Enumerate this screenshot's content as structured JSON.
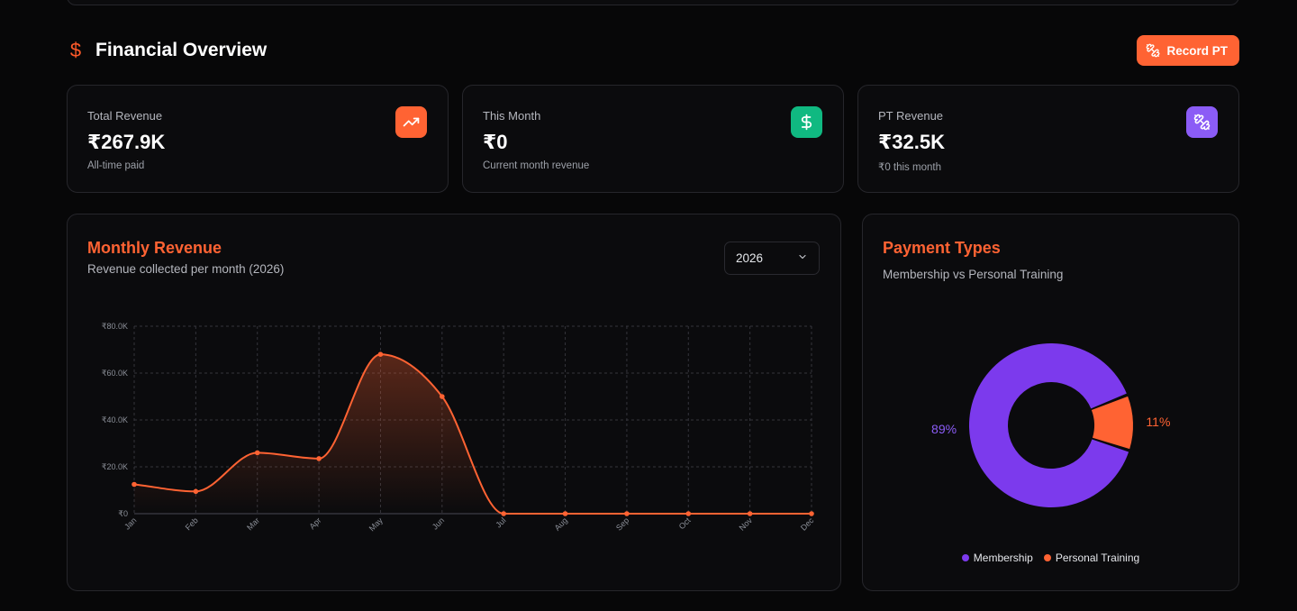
{
  "header": {
    "title": "Financial Overview",
    "title_icon": "dollar-sign-icon",
    "record_button_label": "Record PT",
    "record_button_icon": "dumbbell-icon"
  },
  "stats": [
    {
      "label": "Total Revenue",
      "value": "₹267.9K",
      "sub": "All-time paid",
      "icon": "trending-up-icon",
      "color": "#ff6333"
    },
    {
      "label": "This Month",
      "value": "₹0",
      "sub": "Current month revenue",
      "icon": "dollar-sign-icon",
      "color": "#10b981"
    },
    {
      "label": "PT Revenue",
      "value": "₹32.5K",
      "sub": "₹0 this month",
      "icon": "dumbbell-icon",
      "color": "#8b5cf6"
    }
  ],
  "monthly": {
    "title": "Monthly Revenue",
    "subtitle": "Revenue collected per month (2026)",
    "year_selected": "2026"
  },
  "payment": {
    "title": "Payment Types",
    "subtitle": "Membership vs Personal Training"
  },
  "colors": {
    "accent": "#ff6333",
    "membership": "#7c3aed",
    "personal_training": "#ff6333"
  },
  "chart_data": [
    {
      "type": "area",
      "x": [
        "Jan",
        "Feb",
        "Mar",
        "Apr",
        "May",
        "Jun",
        "Jul",
        "Aug",
        "Sep",
        "Oct",
        "Nov",
        "Dec"
      ],
      "series": [
        {
          "values": [
            12500,
            9500,
            26000,
            23500,
            68000,
            50000,
            0,
            0,
            0,
            0,
            0,
            0
          ]
        }
      ],
      "y_ticks": [
        "₹0",
        "₹20.0K",
        "₹40.0K",
        "₹60.0K",
        "₹80.0K"
      ],
      "ylim": [
        0,
        80000
      ],
      "grid": true,
      "curve": "smooth"
    },
    {
      "type": "pie",
      "donut": true,
      "categories": [
        "Membership",
        "Personal Training"
      ],
      "values": [
        89,
        11
      ],
      "labels": [
        "89%",
        "11%"
      ],
      "legend_position": "bottom"
    }
  ]
}
